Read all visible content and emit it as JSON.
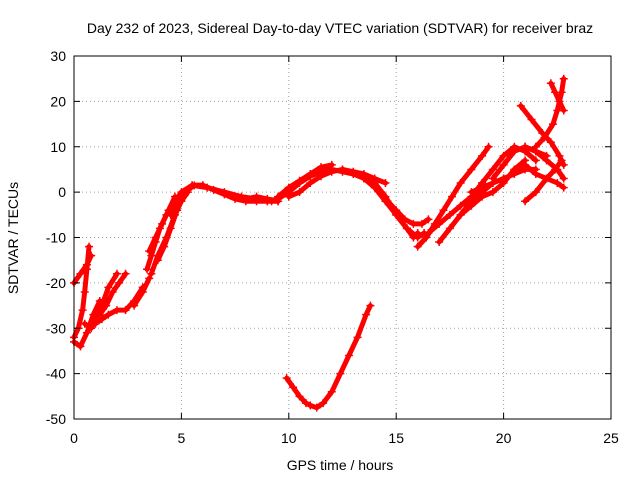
{
  "chart_data": {
    "type": "scatter",
    "title": "Day 232 of 2023, Sidereal Day-to-day VTEC variation (SDTVAR) for receiver braz",
    "xlabel": "GPS time / hours",
    "ylabel": "SDTVAR / TECUs",
    "xlim": [
      0,
      25
    ],
    "ylim": [
      -50,
      30
    ],
    "xticks": [
      0,
      5,
      10,
      15,
      20,
      25
    ],
    "yticks": [
      -50,
      -40,
      -30,
      -20,
      -10,
      0,
      10,
      20,
      30
    ],
    "grid": true,
    "legend": "none",
    "marker": "plus",
    "color": "#ff0000",
    "series": [
      {
        "x": [
          0.0,
          0.2,
          0.4,
          0.5,
          0.6,
          0.7
        ],
        "y": [
          -32,
          -30,
          -26,
          -22,
          -17,
          -12
        ]
      },
      {
        "x": [
          0.0,
          0.3,
          0.6,
          0.8
        ],
        "y": [
          -20,
          -18,
          -16,
          -14
        ]
      },
      {
        "x": [
          0.0,
          0.3,
          0.6,
          0.9,
          1.2
        ],
        "y": [
          -33,
          -34,
          -31,
          -27,
          -24
        ]
      },
      {
        "x": [
          0.5,
          0.8,
          1.0,
          1.3,
          1.6,
          2.0
        ],
        "y": [
          -29,
          -30,
          -28,
          -25,
          -21,
          -18
        ]
      },
      {
        "x": [
          1.0,
          1.3,
          1.6,
          2.0,
          2.4,
          2.8,
          3.2
        ],
        "y": [
          -29,
          -28,
          -27,
          -26,
          -26,
          -24,
          -21
        ]
      },
      {
        "x": [
          1.2,
          1.5,
          1.8,
          2.1,
          2.4
        ],
        "y": [
          -27,
          -25,
          -22,
          -20,
          -18
        ]
      },
      {
        "x": [
          2.8,
          3.2,
          3.5
        ],
        "y": [
          -25,
          -22,
          -19
        ]
      },
      {
        "x": [
          3.4,
          3.6,
          3.8,
          4.0,
          4.3,
          4.7,
          5.0,
          5.5,
          6.0,
          6.5,
          7.0,
          7.5,
          8.0,
          8.5,
          9.0,
          9.5
        ],
        "y": [
          -17,
          -14,
          -11,
          -8,
          -5,
          -2,
          0,
          1.5,
          1.5,
          0.5,
          -0.5,
          -1.5,
          -2,
          -2,
          -2,
          -2
        ]
      },
      {
        "x": [
          3.5,
          3.8,
          4.1,
          4.4,
          4.7
        ],
        "y": [
          -13,
          -10,
          -7,
          -4,
          -1
        ]
      },
      {
        "x": [
          3.6,
          3.9,
          4.3,
          4.7,
          5.0,
          5.3
        ],
        "y": [
          -18,
          -14,
          -10,
          -5,
          -2,
          0
        ]
      },
      {
        "x": [
          3.9,
          4.2,
          4.5,
          4.8,
          5.0
        ],
        "y": [
          -15,
          -12,
          -8,
          -4,
          -1
        ]
      },
      {
        "x": [
          4.5,
          4.8,
          5.0,
          5.3,
          5.6,
          6.0
        ],
        "y": [
          -5,
          -3,
          -1,
          0.5,
          1.5,
          1.5
        ]
      },
      {
        "x": [
          5.5,
          6.2,
          7.0,
          7.8,
          8.5,
          9.2
        ],
        "y": [
          1.5,
          1.0,
          0,
          -1,
          -1.5,
          -2
        ]
      },
      {
        "x": [
          7.5,
          8.0,
          8.5,
          9.0,
          9.5
        ],
        "y": [
          -1,
          -1.5,
          -1,
          -1.5,
          -2
        ]
      },
      {
        "x": [
          9.0,
          9.5,
          10.0,
          10.5,
          11.0,
          11.5,
          12.0,
          12.5,
          13.0
        ],
        "y": [
          -2,
          -1.5,
          0,
          2,
          3.5,
          4.5,
          5.0,
          4.5,
          4.0
        ]
      },
      {
        "x": [
          9.5,
          10.0,
          10.5,
          11.0,
          11.5,
          12.0
        ],
        "y": [
          -1,
          1,
          2.5,
          4,
          5.5,
          6
        ]
      },
      {
        "x": [
          10.0,
          10.5,
          11.0,
          11.5,
          12.0,
          12.5,
          13.0,
          13.5,
          14.0,
          14.5
        ],
        "y": [
          -1,
          0,
          2,
          3.5,
          4.5,
          5,
          4.5,
          4,
          3,
          2
        ]
      },
      {
        "x": [
          12.5,
          13.0,
          13.5,
          14.0,
          14.3,
          14.6,
          15.0,
          15.4,
          15.8,
          16.2,
          16.5
        ],
        "y": [
          5,
          4,
          3,
          2,
          0,
          -2,
          -4,
          -6,
          -7,
          -7,
          -6
        ]
      },
      {
        "x": [
          13.5,
          14.0,
          14.5,
          15.0,
          15.5,
          16.0,
          16.3
        ],
        "y": [
          3,
          1,
          -2,
          -5,
          -8,
          -10,
          -9
        ]
      },
      {
        "x": [
          14.0,
          14.5,
          15.0,
          15.5,
          15.8,
          16.0
        ],
        "y": [
          2,
          -1,
          -5,
          -8,
          -10,
          -9
        ]
      },
      {
        "x": [
          9.9,
          10.2,
          10.5,
          10.8,
          11.0,
          11.3,
          11.6,
          12.0,
          12.4,
          12.8,
          13.2,
          13.6,
          13.8
        ],
        "y": [
          -41,
          -43,
          -45,
          -46.5,
          -47,
          -47.5,
          -46.5,
          -44,
          -40,
          -36,
          -32,
          -27,
          -25
        ]
      },
      {
        "x": [
          16.0,
          16.4,
          16.8,
          17.2,
          17.6,
          18.0,
          18.5,
          19.0,
          19.3
        ],
        "y": [
          -12,
          -10,
          -7,
          -4,
          -1,
          2,
          5,
          8,
          10
        ]
      },
      {
        "x": [
          16.5,
          17.0,
          17.5,
          18.0,
          18.5,
          19.0
        ],
        "y": [
          -9,
          -7,
          -5,
          -3,
          -1,
          2
        ]
      },
      {
        "x": [
          17.0,
          17.5,
          18.0,
          18.5,
          19.0,
          19.5,
          20.0
        ],
        "y": [
          -11,
          -8,
          -5,
          -2,
          0,
          2,
          3
        ]
      },
      {
        "x": [
          18.0,
          18.5,
          19.0,
          19.5,
          20.0,
          20.5,
          21.0
        ],
        "y": [
          -5,
          -3,
          -1,
          0,
          2,
          5,
          7
        ]
      },
      {
        "x": [
          19.0,
          19.5,
          20.0,
          20.5,
          21.0,
          21.5
        ],
        "y": [
          2,
          5,
          8,
          10,
          9,
          7
        ]
      },
      {
        "x": [
          19.5,
          20.0,
          20.5,
          21.0,
          21.5,
          22.0
        ],
        "y": [
          3,
          6,
          9,
          10,
          9,
          8
        ]
      },
      {
        "x": [
          18.5,
          19.0,
          19.5,
          20.0,
          20.5,
          21.0,
          21.5
        ],
        "y": [
          0,
          1,
          2,
          3,
          4,
          5,
          5
        ]
      },
      {
        "x": [
          20.5,
          21.0,
          21.5,
          22.0,
          22.5,
          22.8
        ],
        "y": [
          5,
          6,
          4,
          3,
          2,
          1
        ]
      },
      {
        "x": [
          21.0,
          21.5,
          22.0,
          22.5,
          22.8
        ],
        "y": [
          10,
          9,
          7,
          5,
          3
        ]
      },
      {
        "x": [
          21.0,
          21.5,
          22.0,
          22.4,
          22.7
        ],
        "y": [
          -2,
          0,
          3,
          5,
          7
        ]
      },
      {
        "x": [
          20.8,
          21.3,
          21.8,
          22.2,
          22.6,
          22.8
        ],
        "y": [
          19,
          16,
          13,
          11,
          8,
          6
        ]
      },
      {
        "x": [
          21.5,
          21.9,
          22.3,
          22.5,
          22.7,
          22.8
        ],
        "y": [
          10,
          12,
          15,
          18,
          22,
          25
        ]
      },
      {
        "x": [
          22.2,
          22.4,
          22.6,
          22.8
        ],
        "y": [
          24,
          22,
          20,
          18
        ]
      }
    ]
  }
}
